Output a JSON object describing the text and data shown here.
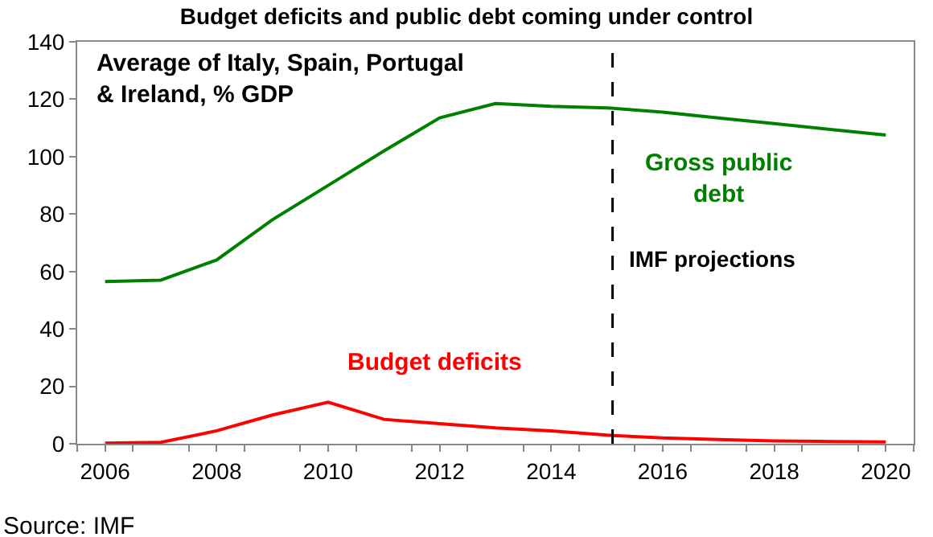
{
  "chart_data": {
    "type": "line",
    "title": "Budget deficits and public debt coming under control",
    "x": [
      2006,
      2007,
      2008,
      2009,
      2010,
      2011,
      2012,
      2013,
      2014,
      2015,
      2016,
      2017,
      2018,
      2019,
      2020
    ],
    "series": [
      {
        "name": "Gross public debt",
        "color": "#008000",
        "values": [
          56.5,
          57,
          64,
          78,
          90,
          102,
          113.5,
          118.5,
          117.5,
          117,
          115.5,
          113.5,
          111.5,
          109.5,
          107.5
        ]
      },
      {
        "name": "Budget deficits",
        "color": "#ff0000",
        "values": [
          0.2,
          0.5,
          4.5,
          10,
          14.5,
          8.5,
          7,
          5.5,
          4.5,
          3,
          2,
          1.5,
          1,
          0.8,
          0.6
        ]
      }
    ],
    "xlim": [
      2005.5,
      2020.5
    ],
    "xticks": [
      {
        "value": 2005.5,
        "label": null
      },
      2006,
      {
        "value": 2006.5,
        "label": null
      },
      {
        "value": 2007.5,
        "label": null
      },
      2008,
      {
        "value": 2008.5,
        "label": null
      },
      {
        "value": 2009.5,
        "label": null
      },
      2010,
      {
        "value": 2010.5,
        "label": null
      },
      {
        "value": 2011.5,
        "label": null
      },
      2012,
      {
        "value": 2012.5,
        "label": null
      },
      {
        "value": 2013.5,
        "label": null
      },
      2014,
      {
        "value": 2014.5,
        "label": null
      },
      {
        "value": 2015.5,
        "label": null
      },
      2016,
      {
        "value": 2016.5,
        "label": null
      },
      {
        "value": 2017.5,
        "label": null
      },
      2018,
      {
        "value": 2018.5,
        "label": null
      },
      {
        "value": 2019.5,
        "label": null
      },
      2020,
      {
        "value": 2020.5,
        "label": null
      }
    ],
    "ylim": [
      0,
      140
    ],
    "yticks": [
      0,
      20,
      40,
      60,
      80,
      100,
      120,
      140
    ],
    "ref_lines": [
      {
        "axis": "x",
        "value": 2015.1,
        "label": "IMF projections",
        "color": "#000000",
        "line_style": "dashed"
      }
    ],
    "annotations": [
      "Average of Italy, Spain, Portugal & Ireland, % GDP",
      "Source: IMF"
    ],
    "legend": false,
    "marker": "none",
    "line_style": "solid"
  }
}
